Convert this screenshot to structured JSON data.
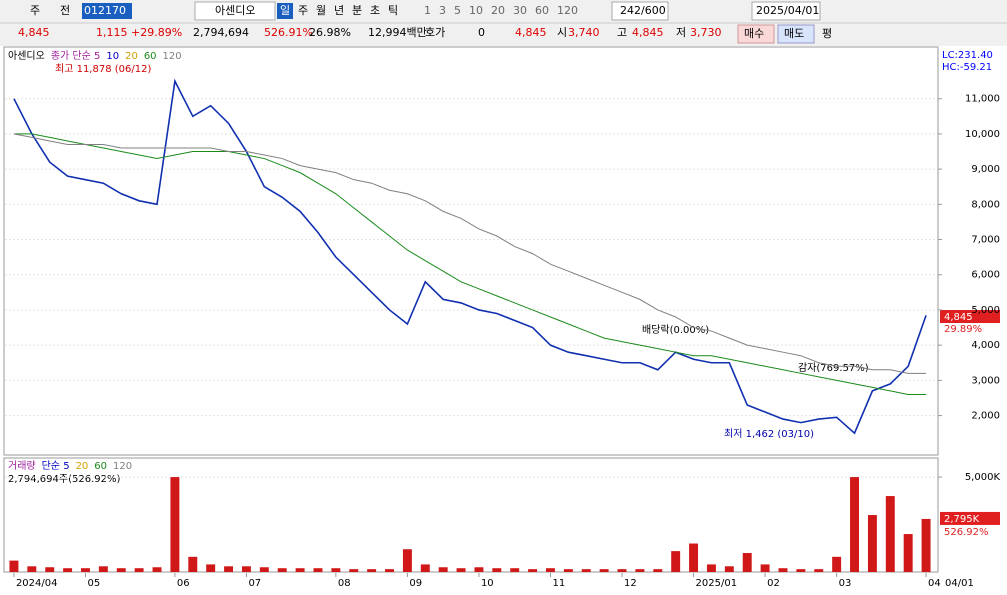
{
  "toolbar": {
    "market": "주",
    "kind": "전",
    "code": "012170",
    "name": "아센디오",
    "periods": [
      "일",
      "주",
      "월",
      "년",
      "분",
      "초",
      "틱"
    ],
    "intervals": [
      "1",
      "3",
      "5",
      "10",
      "20",
      "30",
      "60",
      "120"
    ],
    "count": "242/600",
    "date": "2025/04/01"
  },
  "info": {
    "price": "4,845",
    "change": "1,115",
    "change_pct": "+29.89%",
    "volume": "2,794,694",
    "vol_ratio": "526.91%",
    "turnover": "26.98%",
    "amount": "12,994백만",
    "quote_label": "호가",
    "quote": "0",
    "ask": "4,845",
    "open_label": "시",
    "open": "3,740",
    "high_label": "고",
    "high": "4,845",
    "low_label": "저",
    "low": "3,730",
    "buy": "매수",
    "sell": "매도",
    "eval": "평"
  },
  "chart_data": [
    {
      "type": "line",
      "legend_labels": [
        "종가 단순 5",
        "10",
        "20"
      ],
      "lc": "LC:231.40",
      "hc": "HC:-59.21",
      "annotations": [
        "최고 11,878 (06/12)",
        "최저 1,462 (03/10)",
        "배당락(0.00%)",
        "감자(769.57%)"
      ],
      "last_label": "4,845",
      "last_pct": "29.89%",
      "end_label": "04/01",
      "categories": [
        "2024/04",
        null,
        null,
        null,
        "05",
        null,
        null,
        null,
        null,
        "06",
        null,
        null,
        null,
        "07",
        null,
        null,
        null,
        null,
        "08",
        null,
        null,
        null,
        "09",
        null,
        null,
        null,
        "10",
        null,
        null,
        null,
        "11",
        null,
        null,
        null,
        "12",
        null,
        null,
        null,
        "2025/01",
        null,
        null,
        null,
        "02",
        null,
        null,
        null,
        "03",
        null,
        null,
        null,
        null,
        "04"
      ],
      "series": [
        {
          "name": "아센디오",
          "color": "#1030b0",
          "values": [
            11000,
            10000,
            9200,
            8800,
            8700,
            8600,
            8300,
            8100,
            8000,
            11500,
            10500,
            10800,
            10300,
            9500,
            8500,
            8200,
            7800,
            7200,
            6500,
            6000,
            5500,
            5000,
            4600,
            5800,
            5300,
            5200,
            5000,
            4900,
            4700,
            4500,
            4000,
            3800,
            3700,
            3600,
            3500,
            3500,
            3300,
            3800,
            3600,
            3500,
            3500,
            2300,
            2100,
            1900,
            1800,
            1900,
            1950,
            1500,
            2700,
            2900,
            3400,
            4845
          ]
        },
        {
          "name": "60",
          "color": "#1a8a1a",
          "values": [
            10000,
            10000,
            9900,
            9800,
            9700,
            9600,
            9500,
            9400,
            9300,
            9400,
            9500,
            9500,
            9500,
            9400,
            9300,
            9100,
            8900,
            8600,
            8300,
            7900,
            7500,
            7100,
            6700,
            6400,
            6100,
            5800,
            5600,
            5400,
            5200,
            5000,
            4800,
            4600,
            4400,
            4200,
            4100,
            4000,
            3900,
            3800,
            3700,
            3700,
            3600,
            3500,
            3400,
            3300,
            3200,
            3100,
            3000,
            2900,
            2800,
            2700,
            2600,
            2600
          ]
        },
        {
          "name": "120",
          "color": "#808080",
          "values": [
            10000,
            9900,
            9800,
            9700,
            9700,
            9700,
            9600,
            9600,
            9600,
            9600,
            9600,
            9600,
            9500,
            9500,
            9400,
            9300,
            9100,
            9000,
            8900,
            8700,
            8600,
            8400,
            8300,
            8100,
            7800,
            7600,
            7300,
            7100,
            6800,
            6600,
            6300,
            6100,
            5900,
            5700,
            5500,
            5300,
            5000,
            4800,
            4500,
            4400,
            4200,
            4000,
            3900,
            3800,
            3700,
            3500,
            3400,
            3400,
            3300,
            3300,
            3200,
            3200
          ]
        }
      ],
      "ylim": [
        880,
        12440
      ],
      "yticks": [
        {
          "value": 2000,
          "label": "2,000"
        },
        {
          "value": 3000,
          "label": "3,000"
        },
        {
          "value": 4000,
          "label": "4,000"
        },
        {
          "value": 5000,
          "label": "5,000"
        },
        {
          "value": 6000,
          "label": "6,000"
        },
        {
          "value": 7000,
          "label": "7,000"
        },
        {
          "value": 8000,
          "label": "8,000"
        },
        {
          "value": 9000,
          "label": "9,000"
        },
        {
          "value": 10000,
          "label": "10,000"
        },
        {
          "value": 11000,
          "label": "11,000"
        }
      ],
      "grid": true
    },
    {
      "type": "bar",
      "legend_labels": [
        "거래량",
        "단순 5",
        "20",
        "60",
        "120"
      ],
      "caption": "2,794,694주(526.92%)",
      "last_pct": "526.92%",
      "color": "#d01818",
      "values": [
        600,
        300,
        250,
        200,
        200,
        300,
        200,
        200,
        250,
        5000,
        800,
        400,
        300,
        300,
        250,
        200,
        200,
        200,
        200,
        150,
        150,
        150,
        1200,
        400,
        250,
        200,
        250,
        200,
        200,
        150,
        200,
        150,
        150,
        150,
        150,
        150,
        150,
        1100,
        1500,
        400,
        300,
        1000,
        400,
        200,
        150,
        150,
        800,
        5000,
        3000,
        4000,
        2000,
        2795
      ],
      "value_labels": [
        null,
        null,
        null,
        null,
        null,
        null,
        null,
        null,
        null,
        null,
        null,
        null,
        null,
        null,
        null,
        null,
        null,
        null,
        null,
        null,
        null,
        null,
        null,
        null,
        null,
        null,
        null,
        null,
        null,
        null,
        null,
        null,
        null,
        null,
        null,
        null,
        null,
        null,
        null,
        null,
        null,
        null,
        null,
        null,
        null,
        null,
        null,
        null,
        null,
        null,
        null,
        "2,795K"
      ],
      "ylim": [
        0,
        5900
      ],
      "yticks": [
        {
          "value": 5000,
          "label": "5,000K"
        }
      ],
      "grid": true
    }
  ]
}
